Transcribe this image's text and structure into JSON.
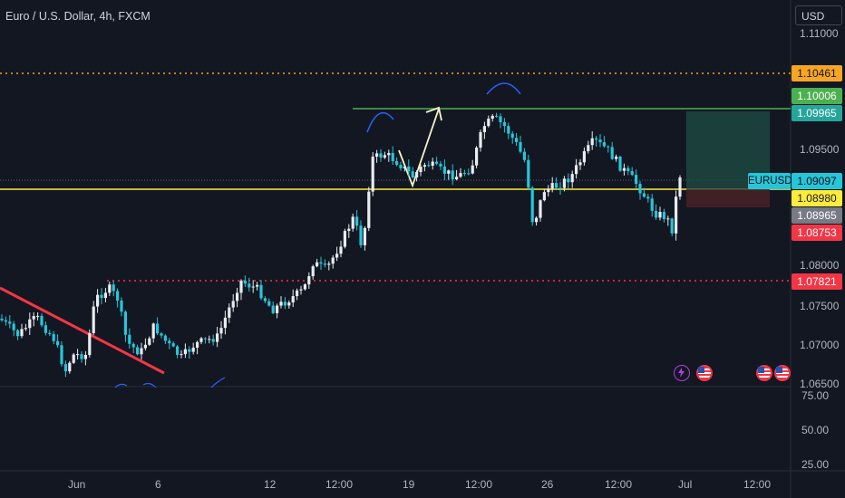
{
  "chart_title": "Euro / U.S. Dollar, 4h, FXCM",
  "currency_button": "USD",
  "price_axis": [
    "1.11000",
    "1.09500",
    "1.08000",
    "1.07500",
    "1.07000",
    "1.06500"
  ],
  "oscillator_axis": [
    "75.00",
    "50.00",
    "25.00"
  ],
  "time_axis": [
    "Jun",
    "6",
    "12",
    "12:00",
    "19",
    "12:00",
    "26",
    "12:00",
    "Jul",
    "12:00"
  ],
  "tags": {
    "resistance_top": "1.10461",
    "green_a": "1.10006",
    "green_b": "1.09965",
    "current": "1.09097",
    "yellow": "1.08980",
    "gray": "1.08965",
    "red": "1.08753",
    "support": "1.07821"
  },
  "symbol_tag": "EURUSD",
  "colors": {
    "background": "#131722",
    "candle_up": "#e8ecf0",
    "candle_down": "#26c6da",
    "orange_line": "#f5a623",
    "green_line": "#4caf50",
    "yellow_line": "#ffeb3b",
    "red_dotted": "#f23645",
    "trendline": "#f23645"
  },
  "events": [
    "lightning-icon",
    "us-flag-icon",
    "us-flag-icon",
    "us-flag-icon"
  ]
}
